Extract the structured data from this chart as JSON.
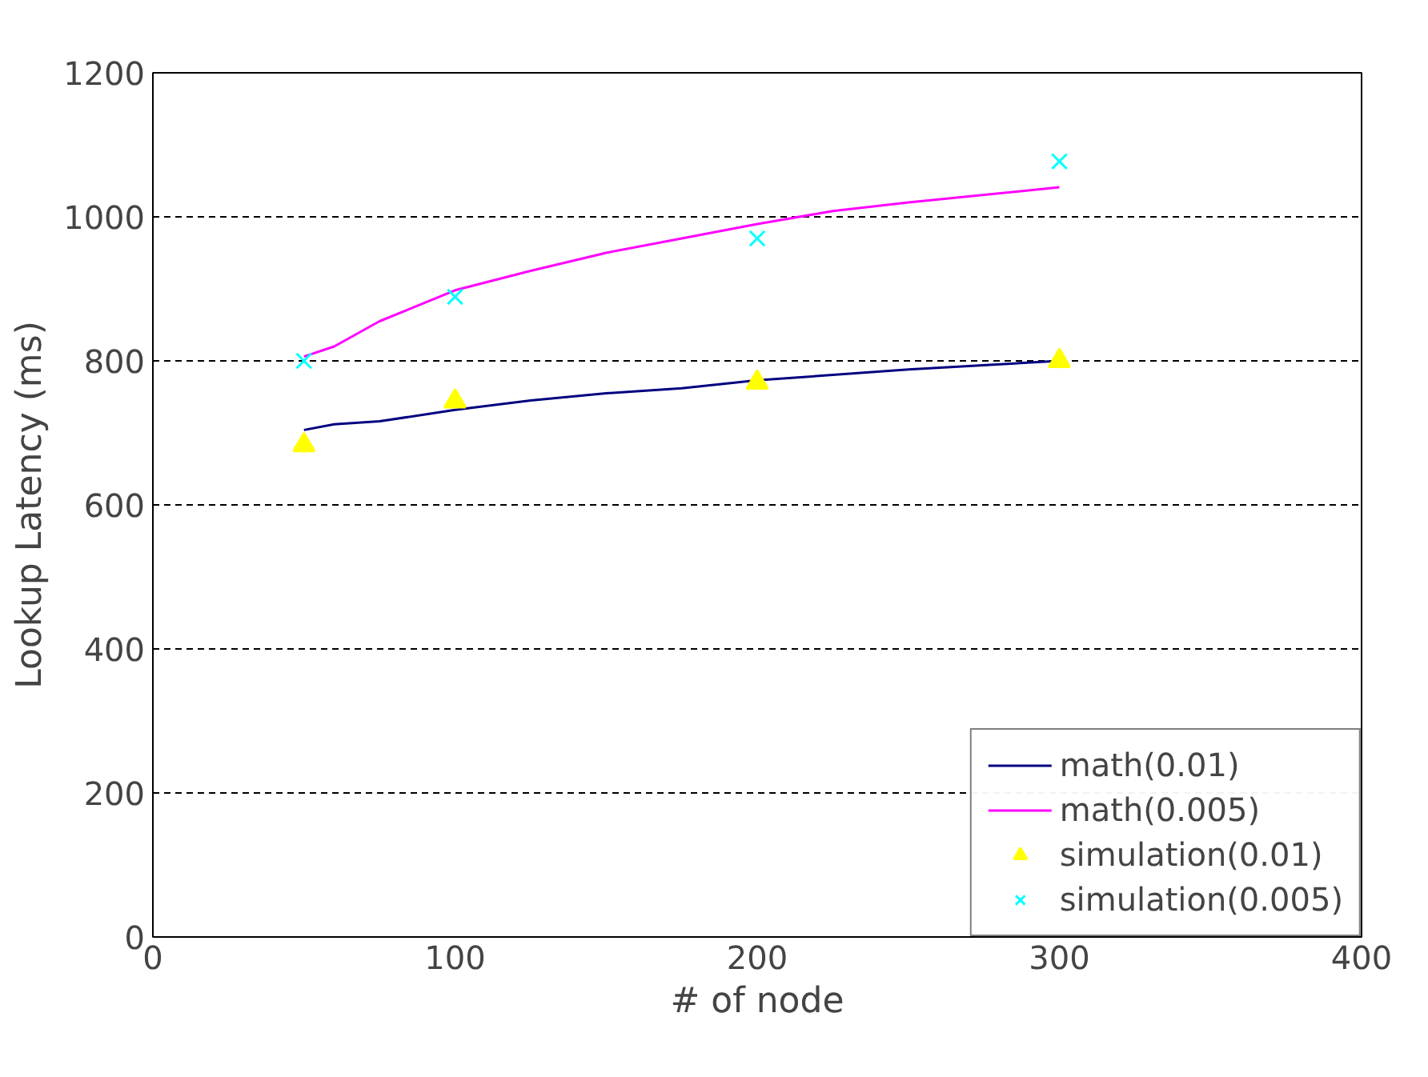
{
  "chart_data": {
    "type": "line",
    "xlabel": "# of node",
    "ylabel": "Lookup Latency (ms)",
    "xlim": [
      0,
      400
    ],
    "xticks": [
      0,
      100,
      200,
      300,
      400
    ],
    "ylim": [
      0,
      1200
    ],
    "yticks": [
      0,
      200,
      400,
      600,
      800,
      1000,
      1200
    ],
    "grid": "y",
    "legend": "bottom right",
    "series": [
      {
        "name": "math(0.01)",
        "color": "#000080",
        "marker": "none",
        "x": [
          50,
          60,
          75,
          100,
          125,
          150,
          175,
          200,
          250,
          300
        ],
        "values": [
          704,
          712,
          716,
          732,
          745,
          755,
          762,
          773,
          788,
          800
        ]
      },
      {
        "name": "math(0.005)",
        "color": "#ff00ff",
        "marker": "none",
        "x": [
          50,
          60,
          75,
          100,
          125,
          150,
          175,
          200,
          225,
          250,
          300
        ],
        "values": [
          806,
          820,
          855,
          898,
          925,
          950,
          970,
          990,
          1008,
          1020,
          1041
        ]
      },
      {
        "name": "simulation(0.01)",
        "type": "scatter",
        "color": "#ffff00",
        "marker": "triangle",
        "x": [
          50,
          100,
          200,
          300
        ],
        "values": [
          683,
          744,
          770,
          800
        ]
      },
      {
        "name": "simulation(0.005)",
        "type": "scatter",
        "color": "#00ffff",
        "marker": "cross",
        "x": [
          50,
          100,
          200,
          300
        ],
        "values": [
          800,
          889,
          970,
          1077
        ]
      }
    ]
  }
}
